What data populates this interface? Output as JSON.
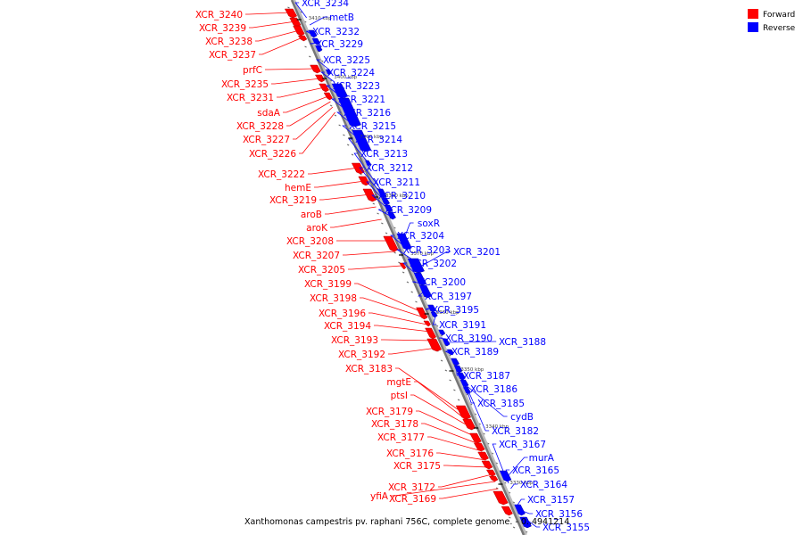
{
  "legend": [
    {
      "label": "Forward",
      "color": "#ff0000"
    },
    {
      "label": "Reverse",
      "color": "#0000ff"
    }
  ],
  "caption": "Xanthomonas campestris pv. raphani 756C, complete genome. - 0..4941214",
  "scale_ticks": [
    "3410 kbp",
    "3400 kbp",
    "3390 kbp",
    "3380 kbp",
    "3370 kbp",
    "3360 kbp",
    "3350 kbp",
    "3340 kbp",
    "3330 kbp"
  ],
  "forward_labels": [
    "XCR_3240",
    "XCR_3239",
    "XCR_3238",
    "XCR_3237",
    "prfC",
    "XCR_3235",
    "XCR_3231",
    "sdaA",
    "XCR_3228",
    "XCR_3227",
    "XCR_3226",
    "XCR_3222",
    "hemE",
    "XCR_3219",
    "aroB",
    "aroK",
    "XCR_3208",
    "XCR_3207",
    "XCR_3205",
    "XCR_3199",
    "XCR_3198",
    "XCR_3196",
    "XCR_3194",
    "XCR_3193",
    "XCR_3192",
    "XCR_3183",
    "mgtE",
    "ptsI",
    "XCR_3179",
    "XCR_3178",
    "XCR_3177",
    "XCR_3176",
    "XCR_3175",
    "XCR_3172",
    "yfiA",
    "XCR_3169"
  ],
  "reverse_labels": [
    "XCR_3234",
    "metB",
    "XCR_3232",
    "XCR_3229",
    "XCR_3225",
    "XCR_3224",
    "XCR_3223",
    "XCR_3221",
    "XCR_3216",
    "XCR_3215",
    "XCR_3214",
    "XCR_3213",
    "XCR_3212",
    "XCR_3211",
    "XCR_3210",
    "XCR_3209",
    "soxR",
    "XCR_3204",
    "XCR_3203",
    "XCR_3201",
    "XCR_3202",
    "XCR_3200",
    "XCR_3197",
    "XCR_3195",
    "XCR_3191",
    "XCR_3190",
    "XCR_3188",
    "XCR_3189",
    "XCR_3187",
    "XCR_3186",
    "XCR_3185",
    "cydB",
    "XCR_3182",
    "XCR_3167",
    "murA",
    "XCR_3165",
    "XCR_3164",
    "XCR_3157",
    "XCR_3156",
    "XCR_3155"
  ]
}
